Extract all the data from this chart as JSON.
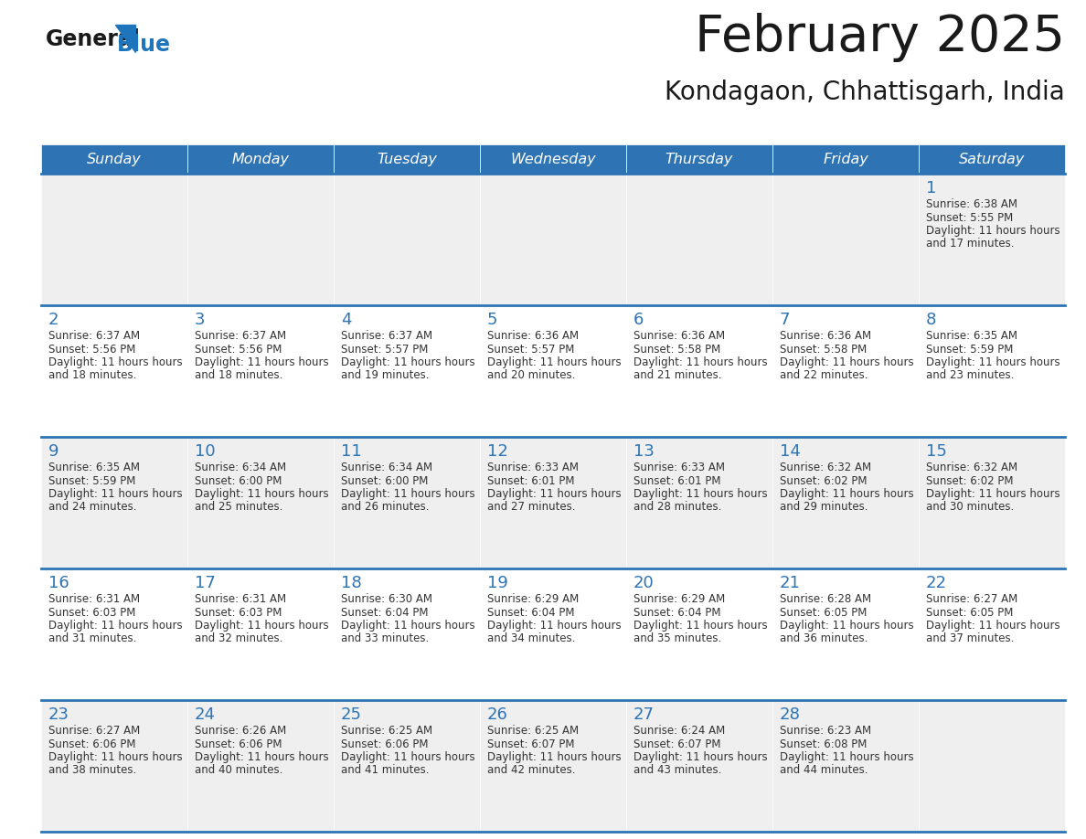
{
  "title": "February 2025",
  "subtitle": "Kondagaon, Chhattisgarh, India",
  "days_of_week": [
    "Sunday",
    "Monday",
    "Tuesday",
    "Wednesday",
    "Thursday",
    "Friday",
    "Saturday"
  ],
  "header_bg": "#2E74B5",
  "header_text": "#FFFFFF",
  "cell_bg_odd": "#EFEFEF",
  "cell_bg_even": "#FFFFFF",
  "cell_border": "#2E74B5",
  "title_color": "#1A1A1A",
  "day_num_color": "#2E74B5",
  "text_color": "#333333",
  "logo_general_color": "#1A1A1A",
  "logo_blue_color": "#1E75BB",
  "days": [
    {
      "day": 1,
      "col": 6,
      "row": 0,
      "sunrise": "6:38 AM",
      "sunset": "5:55 PM",
      "daylight": "11 hours and 17 minutes."
    },
    {
      "day": 2,
      "col": 0,
      "row": 1,
      "sunrise": "6:37 AM",
      "sunset": "5:56 PM",
      "daylight": "11 hours and 18 minutes."
    },
    {
      "day": 3,
      "col": 1,
      "row": 1,
      "sunrise": "6:37 AM",
      "sunset": "5:56 PM",
      "daylight": "11 hours and 18 minutes."
    },
    {
      "day": 4,
      "col": 2,
      "row": 1,
      "sunrise": "6:37 AM",
      "sunset": "5:57 PM",
      "daylight": "11 hours and 19 minutes."
    },
    {
      "day": 5,
      "col": 3,
      "row": 1,
      "sunrise": "6:36 AM",
      "sunset": "5:57 PM",
      "daylight": "11 hours and 20 minutes."
    },
    {
      "day": 6,
      "col": 4,
      "row": 1,
      "sunrise": "6:36 AM",
      "sunset": "5:58 PM",
      "daylight": "11 hours and 21 minutes."
    },
    {
      "day": 7,
      "col": 5,
      "row": 1,
      "sunrise": "6:36 AM",
      "sunset": "5:58 PM",
      "daylight": "11 hours and 22 minutes."
    },
    {
      "day": 8,
      "col": 6,
      "row": 1,
      "sunrise": "6:35 AM",
      "sunset": "5:59 PM",
      "daylight": "11 hours and 23 minutes."
    },
    {
      "day": 9,
      "col": 0,
      "row": 2,
      "sunrise": "6:35 AM",
      "sunset": "5:59 PM",
      "daylight": "11 hours and 24 minutes."
    },
    {
      "day": 10,
      "col": 1,
      "row": 2,
      "sunrise": "6:34 AM",
      "sunset": "6:00 PM",
      "daylight": "11 hours and 25 minutes."
    },
    {
      "day": 11,
      "col": 2,
      "row": 2,
      "sunrise": "6:34 AM",
      "sunset": "6:00 PM",
      "daylight": "11 hours and 26 minutes."
    },
    {
      "day": 12,
      "col": 3,
      "row": 2,
      "sunrise": "6:33 AM",
      "sunset": "6:01 PM",
      "daylight": "11 hours and 27 minutes."
    },
    {
      "day": 13,
      "col": 4,
      "row": 2,
      "sunrise": "6:33 AM",
      "sunset": "6:01 PM",
      "daylight": "11 hours and 28 minutes."
    },
    {
      "day": 14,
      "col": 5,
      "row": 2,
      "sunrise": "6:32 AM",
      "sunset": "6:02 PM",
      "daylight": "11 hours and 29 minutes."
    },
    {
      "day": 15,
      "col": 6,
      "row": 2,
      "sunrise": "6:32 AM",
      "sunset": "6:02 PM",
      "daylight": "11 hours and 30 minutes."
    },
    {
      "day": 16,
      "col": 0,
      "row": 3,
      "sunrise": "6:31 AM",
      "sunset": "6:03 PM",
      "daylight": "11 hours and 31 minutes."
    },
    {
      "day": 17,
      "col": 1,
      "row": 3,
      "sunrise": "6:31 AM",
      "sunset": "6:03 PM",
      "daylight": "11 hours and 32 minutes."
    },
    {
      "day": 18,
      "col": 2,
      "row": 3,
      "sunrise": "6:30 AM",
      "sunset": "6:04 PM",
      "daylight": "11 hours and 33 minutes."
    },
    {
      "day": 19,
      "col": 3,
      "row": 3,
      "sunrise": "6:29 AM",
      "sunset": "6:04 PM",
      "daylight": "11 hours and 34 minutes."
    },
    {
      "day": 20,
      "col": 4,
      "row": 3,
      "sunrise": "6:29 AM",
      "sunset": "6:04 PM",
      "daylight": "11 hours and 35 minutes."
    },
    {
      "day": 21,
      "col": 5,
      "row": 3,
      "sunrise": "6:28 AM",
      "sunset": "6:05 PM",
      "daylight": "11 hours and 36 minutes."
    },
    {
      "day": 22,
      "col": 6,
      "row": 3,
      "sunrise": "6:27 AM",
      "sunset": "6:05 PM",
      "daylight": "11 hours and 37 minutes."
    },
    {
      "day": 23,
      "col": 0,
      "row": 4,
      "sunrise": "6:27 AM",
      "sunset": "6:06 PM",
      "daylight": "11 hours and 38 minutes."
    },
    {
      "day": 24,
      "col": 1,
      "row": 4,
      "sunrise": "6:26 AM",
      "sunset": "6:06 PM",
      "daylight": "11 hours and 40 minutes."
    },
    {
      "day": 25,
      "col": 2,
      "row": 4,
      "sunrise": "6:25 AM",
      "sunset": "6:06 PM",
      "daylight": "11 hours and 41 minutes."
    },
    {
      "day": 26,
      "col": 3,
      "row": 4,
      "sunrise": "6:25 AM",
      "sunset": "6:07 PM",
      "daylight": "11 hours and 42 minutes."
    },
    {
      "day": 27,
      "col": 4,
      "row": 4,
      "sunrise": "6:24 AM",
      "sunset": "6:07 PM",
      "daylight": "11 hours and 43 minutes."
    },
    {
      "day": 28,
      "col": 5,
      "row": 4,
      "sunrise": "6:23 AM",
      "sunset": "6:08 PM",
      "daylight": "11 hours and 44 minutes."
    }
  ]
}
